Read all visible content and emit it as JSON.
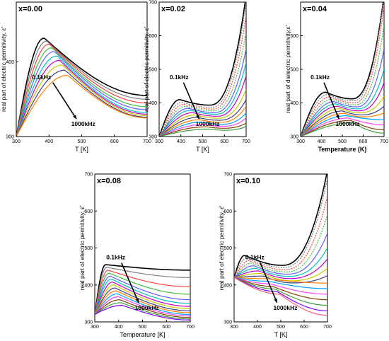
{
  "chart_data": [
    {
      "type": "line",
      "panel_label": "x=0.00",
      "xlabel": "T [K]",
      "ylabel": "real part of electric permitivity, ε'",
      "xlim": [
        300,
        700
      ],
      "ylim": [
        300,
        480
      ],
      "xticks": [
        300,
        400,
        500,
        600,
        700
      ],
      "yticks": [
        300,
        400
      ],
      "annotation_low": "0.1kHz",
      "annotation_high": "1000kHz",
      "series_count": 10,
      "series_peak_T": [
        385,
        393,
        401,
        409,
        417,
        425,
        433,
        441,
        449,
        457
      ],
      "series_peak_eps": [
        432,
        428,
        424,
        419,
        414,
        408,
        402,
        396,
        389,
        382
      ],
      "series_start_eps": 300,
      "series_end_eps": [
        355,
        350,
        345,
        340,
        336,
        332,
        330,
        328,
        326,
        325
      ]
    },
    {
      "type": "line",
      "panel_label": "x=0.02",
      "xlabel": "T [K]",
      "ylabel": "real part of electric permitivity, ε'",
      "xlim": [
        300,
        700
      ],
      "ylim": [
        300,
        700
      ],
      "xticks": [
        300,
        400,
        500,
        600,
        700
      ],
      "yticks": [
        300,
        400,
        500,
        600,
        700
      ],
      "annotation_low": "0.1kHz",
      "annotation_high": "1000kHz",
      "series_count": 14,
      "series_peak_T": [
        395,
        405,
        415,
        425,
        435,
        445,
        455,
        465,
        475,
        485,
        495,
        505,
        515,
        525
      ],
      "series_peak_eps": [
        410,
        402,
        396,
        390,
        384,
        378,
        371,
        364,
        357,
        350,
        343,
        336,
        329,
        322
      ],
      "series_start_eps": 300,
      "series_end_eps": [
        720,
        700,
        660,
        610,
        560,
        520,
        480,
        440,
        410,
        390,
        370,
        355,
        340,
        330
      ]
    },
    {
      "type": "line",
      "panel_label": "x=0.04",
      "xlabel": "Temperature (K)",
      "ylabel": "real part of dielectric permitivity,ε'",
      "xlim": [
        300,
        700
      ],
      "ylim": [
        300,
        700
      ],
      "xticks": [
        300,
        400,
        500,
        600,
        700
      ],
      "yticks": [
        300,
        400,
        500,
        600
      ],
      "annotation_low": "0.1kHz",
      "annotation_high": "1000kHz",
      "series_count": 14,
      "series_peak_T": [
        420,
        430,
        440,
        450,
        460,
        470,
        480,
        490,
        500,
        510,
        520,
        530,
        540,
        550
      ],
      "series_peak_eps": [
        432,
        425,
        418,
        411,
        404,
        397,
        390,
        383,
        376,
        369,
        362,
        355,
        348,
        341
      ],
      "series_start_eps": 300,
      "series_end_eps": [
        720,
        720,
        690,
        630,
        560,
        500,
        460,
        420,
        390,
        370,
        350,
        335,
        320,
        310
      ]
    },
    {
      "type": "line",
      "panel_label": "x=0.08",
      "xlabel": "Temperature [K]",
      "ylabel": "real part of electric permitivity, ε'",
      "xlim": [
        300,
        700
      ],
      "ylim": [
        300,
        700
      ],
      "xticks": [
        300,
        400,
        500,
        600,
        700
      ],
      "yticks": [
        300,
        400,
        500,
        600,
        700
      ],
      "annotation_low": "0.1kHz",
      "annotation_high": "1000kHz",
      "series_count": 15,
      "series_peak_T": [
        345,
        350,
        355,
        360,
        365,
        370,
        375,
        380,
        385,
        390,
        395,
        400,
        405,
        410,
        415
      ],
      "series_peak_eps": [
        455,
        448,
        440,
        432,
        424,
        416,
        408,
        400,
        392,
        384,
        376,
        368,
        360,
        352,
        345
      ],
      "series_start_eps": 320,
      "series_end_eps": [
        440,
        420,
        395,
        375,
        360,
        350,
        342,
        336,
        330,
        325,
        320,
        316,
        312,
        308,
        305
      ]
    },
    {
      "type": "line",
      "panel_label": "x=0.10",
      "xlabel": "T [K]",
      "ylabel": "real part of electric permitivity, ε'",
      "xlim": [
        300,
        700
      ],
      "ylim": [
        300,
        700
      ],
      "xticks": [
        300,
        400,
        500,
        600,
        700
      ],
      "yticks": [
        300,
        400,
        500,
        600,
        700
      ],
      "annotation_low": "0.1kHz",
      "annotation_high": "1000kHz",
      "series_count": 16,
      "series_peak_T": [
        345,
        355,
        365,
        375,
        385,
        395,
        405,
        415,
        425,
        435,
        445,
        455,
        465,
        475,
        485,
        495
      ],
      "series_peak_eps": [
        480,
        473,
        466,
        459,
        452,
        445,
        438,
        431,
        424,
        417,
        410,
        403,
        396,
        389,
        382,
        375
      ],
      "series_start_eps": 420,
      "series_end_eps": [
        710,
        690,
        640,
        590,
        540,
        500,
        470,
        445,
        425,
        405,
        390,
        375,
        360,
        345,
        330,
        318
      ]
    }
  ],
  "series_colors": [
    "#000000",
    "#7f7f7f",
    "#ff3f3f",
    "#3fbf3f",
    "#5f5fff",
    "#00bfbf",
    "#bf00bf",
    "#c8c800",
    "#3f3f7f",
    "#ff7f00",
    "#00a0ff",
    "#ff3fff",
    "#7f3f00",
    "#3f9f3f",
    "#7f00ff",
    "#ff5f7f"
  ]
}
